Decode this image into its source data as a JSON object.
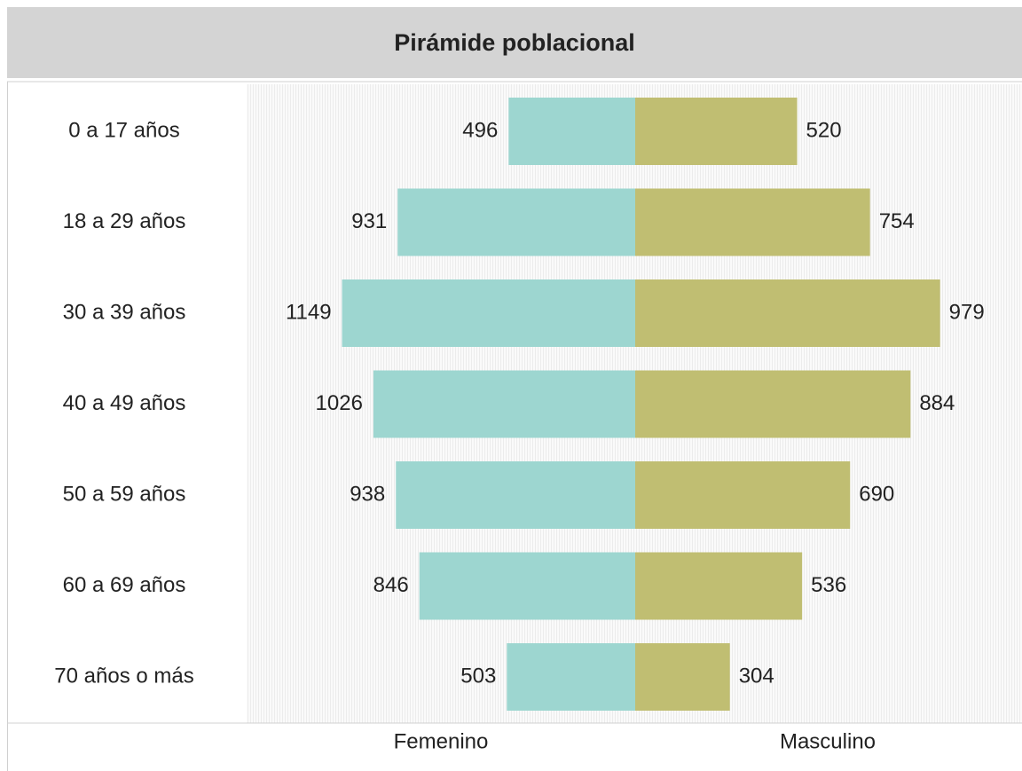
{
  "chart_data": {
    "type": "pyramid",
    "title": "Pirámide poblacional",
    "categories": [
      "0 a 17 años",
      "18 a 29 años",
      "30 a 39 años",
      "40 a 49 años",
      "50 a 59 años",
      "60 a 69 años",
      "70 años o más"
    ],
    "series": [
      {
        "name": "Femenino",
        "color": "#9dd6d0",
        "values": [
          496,
          931,
          1149,
          1026,
          938,
          846,
          503
        ],
        "xlim": [
          0,
          1523
        ]
      },
      {
        "name": "Masculino",
        "color": "#c0be72",
        "values": [
          520,
          754,
          979,
          884,
          690,
          536,
          304
        ],
        "xlim": [
          0,
          1242
        ]
      }
    ]
  }
}
